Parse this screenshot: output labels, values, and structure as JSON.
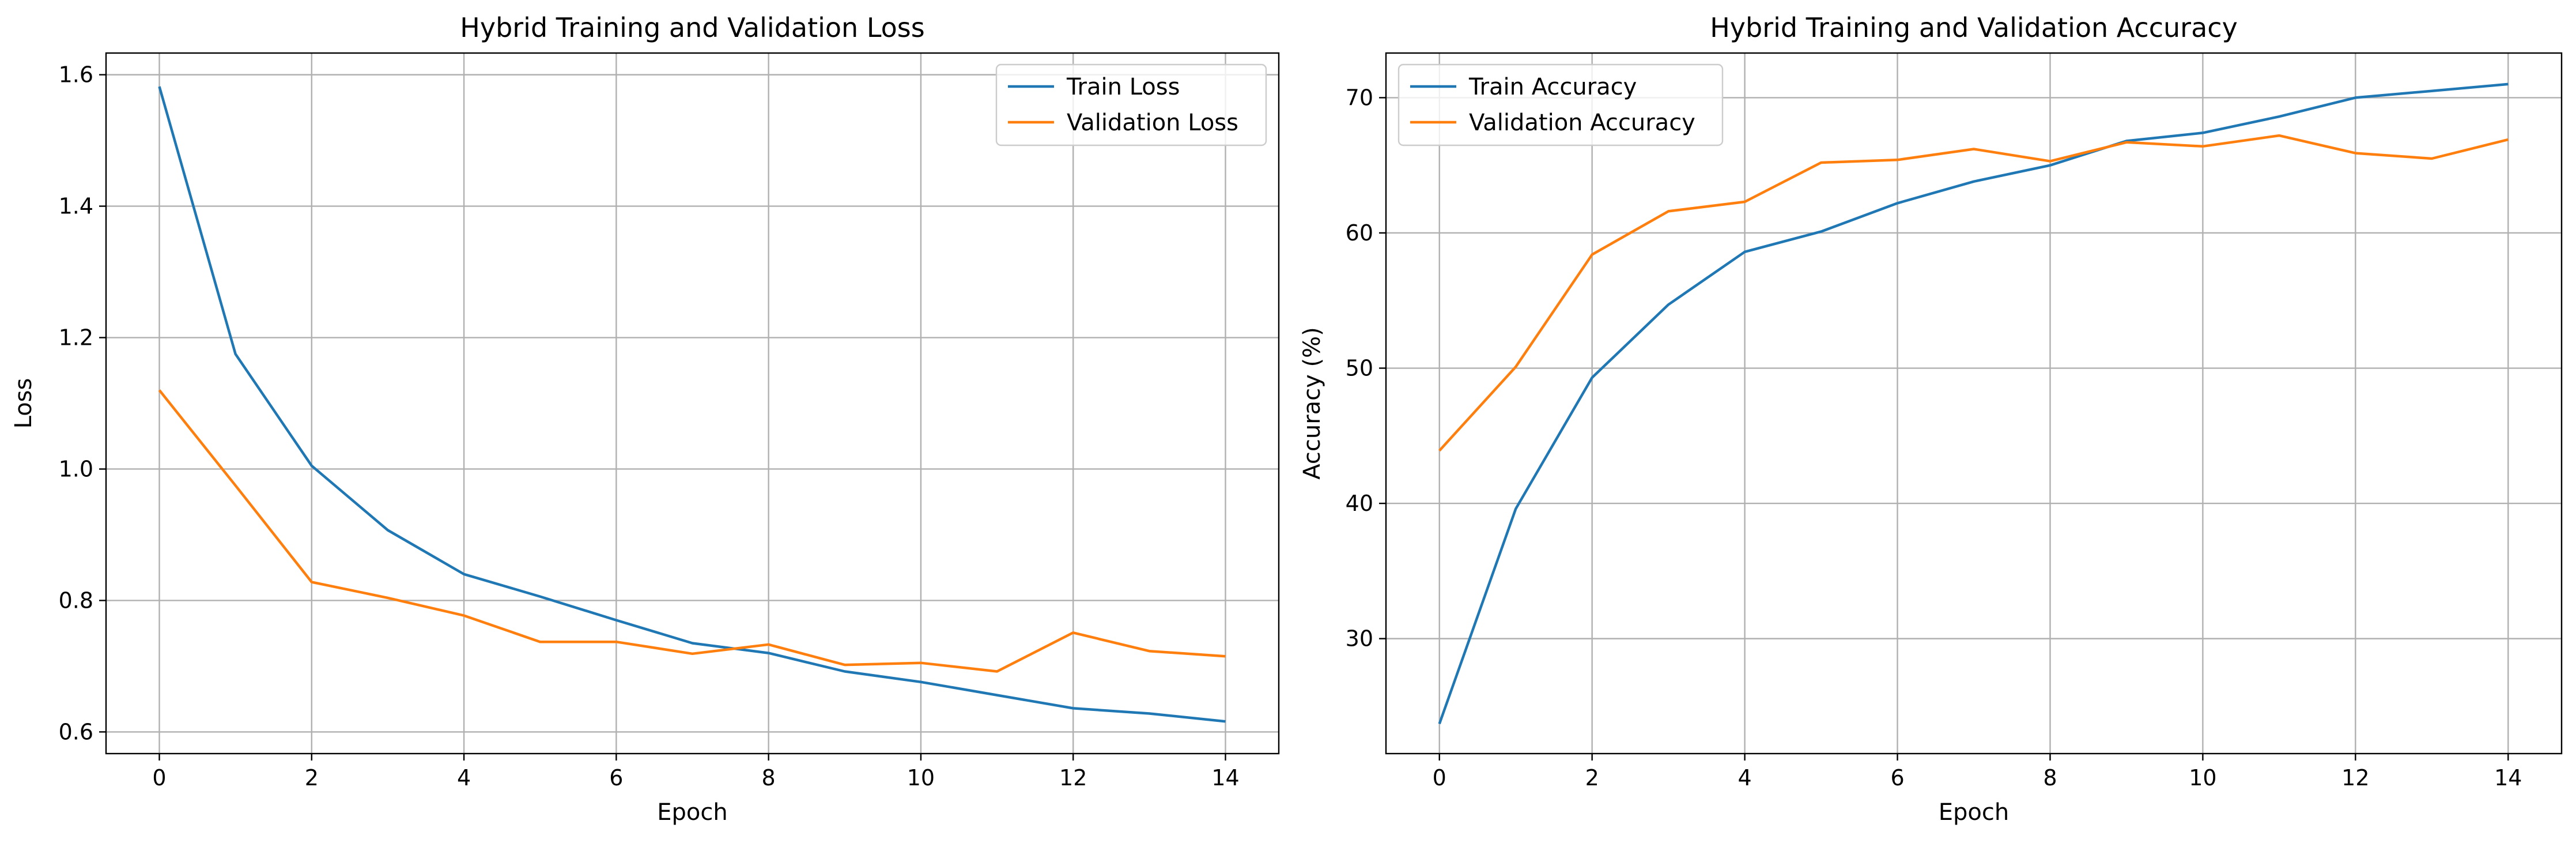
{
  "colors": {
    "train": "#1f77b4",
    "validation": "#ff7f0e",
    "grid": "#b0b0b0"
  },
  "chart_data": [
    {
      "type": "line",
      "title": "Hybrid Training and Validation Loss",
      "xlabel": "Epoch",
      "ylabel": "Loss",
      "x": [
        0,
        1,
        2,
        3,
        4,
        5,
        6,
        7,
        8,
        9,
        10,
        11,
        12,
        13,
        14
      ],
      "xlim": [
        -0.7,
        14.7
      ],
      "ylim": [
        0.567,
        1.633
      ],
      "xticks": [
        0,
        2,
        4,
        6,
        8,
        10,
        12,
        14
      ],
      "yticks": [
        0.6,
        0.8,
        1.0,
        1.2,
        1.4,
        1.6
      ],
      "ytick_labels": [
        "0.6",
        "0.8",
        "1.0",
        "1.2",
        "1.4",
        "1.6"
      ],
      "grid": true,
      "legend_position": "upper-right",
      "series": [
        {
          "name": "Train Loss",
          "color": "#1f77b4",
          "values": [
            1.582,
            1.175,
            1.005,
            0.907,
            0.84,
            0.806,
            0.77,
            0.735,
            0.72,
            0.692,
            0.676,
            0.656,
            0.636,
            0.628,
            0.616
          ]
        },
        {
          "name": "Validation Loss",
          "color": "#ff7f0e",
          "values": [
            1.12,
            0.975,
            0.828,
            0.804,
            0.777,
            0.737,
            0.737,
            0.719,
            0.733,
            0.702,
            0.705,
            0.692,
            0.751,
            0.723,
            0.715
          ]
        }
      ]
    },
    {
      "type": "line",
      "title": "Hybrid Training and Validation Accuracy",
      "xlabel": "Epoch",
      "ylabel": "Accuracy (%)",
      "x": [
        0,
        1,
        2,
        3,
        4,
        5,
        6,
        7,
        8,
        9,
        10,
        11,
        12,
        13,
        14
      ],
      "xlim": [
        -0.7,
        14.7
      ],
      "ylim": [
        21.5,
        73.3
      ],
      "xticks": [
        0,
        2,
        4,
        6,
        8,
        10,
        12,
        14
      ],
      "yticks": [
        30,
        40,
        50,
        60,
        70
      ],
      "ytick_labels": [
        "30",
        "40",
        "50",
        "60",
        "70"
      ],
      "grid": true,
      "legend_position": "upper-left",
      "series": [
        {
          "name": "Train Accuracy",
          "color": "#1f77b4",
          "values": [
            23.7,
            39.6,
            49.3,
            54.7,
            58.6,
            60.1,
            62.2,
            63.8,
            65.0,
            66.8,
            67.4,
            68.6,
            70.0,
            70.5,
            71.0
          ]
        },
        {
          "name": "Validation Accuracy",
          "color": "#ff7f0e",
          "values": [
            43.9,
            50.1,
            58.4,
            61.6,
            62.3,
            65.2,
            65.4,
            66.2,
            65.3,
            66.7,
            66.4,
            67.2,
            65.9,
            65.5,
            66.9
          ]
        }
      ]
    }
  ]
}
